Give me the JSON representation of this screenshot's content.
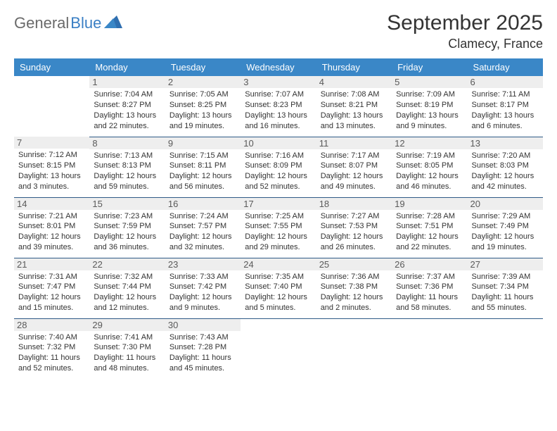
{
  "brand": {
    "part1": "General",
    "part2": "Blue"
  },
  "title": "September 2025",
  "location": "Clamecy, France",
  "colors": {
    "header_bg": "#3a87c7",
    "header_text": "#ffffff",
    "border": "#2f5a87",
    "daynum_bg": "#eeeeee",
    "logo_gray": "#6a6a6a",
    "logo_blue": "#3a7fc4"
  },
  "weekdays": [
    "Sunday",
    "Monday",
    "Tuesday",
    "Wednesday",
    "Thursday",
    "Friday",
    "Saturday"
  ],
  "weeks": [
    [
      null,
      {
        "n": "1",
        "sr": "7:04 AM",
        "ss": "8:27 PM",
        "dl": "13 hours and 22 minutes."
      },
      {
        "n": "2",
        "sr": "7:05 AM",
        "ss": "8:25 PM",
        "dl": "13 hours and 19 minutes."
      },
      {
        "n": "3",
        "sr": "7:07 AM",
        "ss": "8:23 PM",
        "dl": "13 hours and 16 minutes."
      },
      {
        "n": "4",
        "sr": "7:08 AM",
        "ss": "8:21 PM",
        "dl": "13 hours and 13 minutes."
      },
      {
        "n": "5",
        "sr": "7:09 AM",
        "ss": "8:19 PM",
        "dl": "13 hours and 9 minutes."
      },
      {
        "n": "6",
        "sr": "7:11 AM",
        "ss": "8:17 PM",
        "dl": "13 hours and 6 minutes."
      }
    ],
    [
      {
        "n": "7",
        "sr": "7:12 AM",
        "ss": "8:15 PM",
        "dl": "13 hours and 3 minutes."
      },
      {
        "n": "8",
        "sr": "7:13 AM",
        "ss": "8:13 PM",
        "dl": "12 hours and 59 minutes."
      },
      {
        "n": "9",
        "sr": "7:15 AM",
        "ss": "8:11 PM",
        "dl": "12 hours and 56 minutes."
      },
      {
        "n": "10",
        "sr": "7:16 AM",
        "ss": "8:09 PM",
        "dl": "12 hours and 52 minutes."
      },
      {
        "n": "11",
        "sr": "7:17 AM",
        "ss": "8:07 PM",
        "dl": "12 hours and 49 minutes."
      },
      {
        "n": "12",
        "sr": "7:19 AM",
        "ss": "8:05 PM",
        "dl": "12 hours and 46 minutes."
      },
      {
        "n": "13",
        "sr": "7:20 AM",
        "ss": "8:03 PM",
        "dl": "12 hours and 42 minutes."
      }
    ],
    [
      {
        "n": "14",
        "sr": "7:21 AM",
        "ss": "8:01 PM",
        "dl": "12 hours and 39 minutes."
      },
      {
        "n": "15",
        "sr": "7:23 AM",
        "ss": "7:59 PM",
        "dl": "12 hours and 36 minutes."
      },
      {
        "n": "16",
        "sr": "7:24 AM",
        "ss": "7:57 PM",
        "dl": "12 hours and 32 minutes."
      },
      {
        "n": "17",
        "sr": "7:25 AM",
        "ss": "7:55 PM",
        "dl": "12 hours and 29 minutes."
      },
      {
        "n": "18",
        "sr": "7:27 AM",
        "ss": "7:53 PM",
        "dl": "12 hours and 26 minutes."
      },
      {
        "n": "19",
        "sr": "7:28 AM",
        "ss": "7:51 PM",
        "dl": "12 hours and 22 minutes."
      },
      {
        "n": "20",
        "sr": "7:29 AM",
        "ss": "7:49 PM",
        "dl": "12 hours and 19 minutes."
      }
    ],
    [
      {
        "n": "21",
        "sr": "7:31 AM",
        "ss": "7:47 PM",
        "dl": "12 hours and 15 minutes."
      },
      {
        "n": "22",
        "sr": "7:32 AM",
        "ss": "7:44 PM",
        "dl": "12 hours and 12 minutes."
      },
      {
        "n": "23",
        "sr": "7:33 AM",
        "ss": "7:42 PM",
        "dl": "12 hours and 9 minutes."
      },
      {
        "n": "24",
        "sr": "7:35 AM",
        "ss": "7:40 PM",
        "dl": "12 hours and 5 minutes."
      },
      {
        "n": "25",
        "sr": "7:36 AM",
        "ss": "7:38 PM",
        "dl": "12 hours and 2 minutes."
      },
      {
        "n": "26",
        "sr": "7:37 AM",
        "ss": "7:36 PM",
        "dl": "11 hours and 58 minutes."
      },
      {
        "n": "27",
        "sr": "7:39 AM",
        "ss": "7:34 PM",
        "dl": "11 hours and 55 minutes."
      }
    ],
    [
      {
        "n": "28",
        "sr": "7:40 AM",
        "ss": "7:32 PM",
        "dl": "11 hours and 52 minutes."
      },
      {
        "n": "29",
        "sr": "7:41 AM",
        "ss": "7:30 PM",
        "dl": "11 hours and 48 minutes."
      },
      {
        "n": "30",
        "sr": "7:43 AM",
        "ss": "7:28 PM",
        "dl": "11 hours and 45 minutes."
      },
      null,
      null,
      null,
      null
    ]
  ],
  "labels": {
    "sunrise": "Sunrise:",
    "sunset": "Sunset:",
    "daylight": "Daylight:"
  }
}
